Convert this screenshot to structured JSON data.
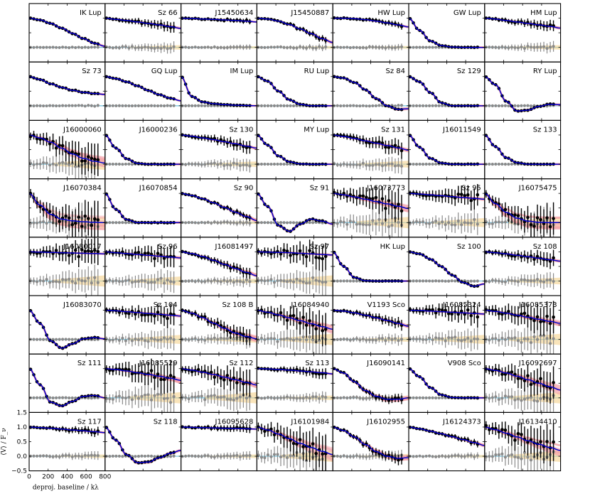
{
  "chart_data": {
    "type": "line",
    "xlabel": "deproj. baseline / kλ",
    "ylabel": "⟨V⟩ / F_ν",
    "xlim": [
      0,
      800
    ],
    "ylim": [
      -0.5,
      1.5
    ],
    "xticks": [
      "0",
      "200",
      "400",
      "600",
      "800"
    ],
    "yticks": [
      "1.5",
      "1.0",
      "0.5",
      "0.0",
      "−0.5"
    ],
    "colors": {
      "model": "#0000cc",
      "posterior": "#f4a0a8",
      "real_points": "#000000",
      "imag_points": "#8a8a8a",
      "imag_band": "#f5d28c",
      "zero_line": "#6fc3e0"
    },
    "panels": [
      {
        "name": "IK Lup",
        "values": [
          1.0,
          0.94,
          0.82,
          0.66,
          0.48,
          0.3,
          0.14,
          0.04
        ],
        "noise": 0.03
      },
      {
        "name": "Sz 66",
        "values": [
          1.0,
          0.96,
          0.92,
          0.87,
          0.82,
          0.77,
          0.71,
          0.65
        ],
        "noise": 0.1
      },
      {
        "name": "J15450634",
        "values": [
          1.0,
          0.99,
          0.97,
          0.96,
          0.94,
          0.92,
          0.9,
          0.87
        ],
        "noise": 0.05
      },
      {
        "name": "J15450887",
        "values": [
          1.0,
          0.97,
          0.9,
          0.78,
          0.63,
          0.47,
          0.3,
          0.17
        ],
        "noise": 0.06
      },
      {
        "name": "HW Lup",
        "values": [
          1.0,
          1.0,
          0.98,
          0.95,
          0.9,
          0.84,
          0.77,
          0.7
        ],
        "noise": 0.06
      },
      {
        "name": "GW Lup",
        "values": [
          1.0,
          0.58,
          0.22,
          0.06,
          0.01,
          0.0,
          0.0,
          0.0
        ],
        "noise": 0.01
      },
      {
        "name": "HM Lup",
        "values": [
          1.0,
          0.97,
          0.92,
          0.87,
          0.82,
          0.77,
          0.72,
          0.66
        ],
        "noise": 0.1
      },
      {
        "name": "Sz 73",
        "values": [
          1.0,
          0.9,
          0.75,
          0.63,
          0.53,
          0.46,
          0.42,
          0.39
        ],
        "noise": 0.03
      },
      {
        "name": "GQ Lup",
        "values": [
          1.0,
          0.93,
          0.82,
          0.68,
          0.52,
          0.38,
          0.26,
          0.17
        ],
        "noise": 0.01
      },
      {
        "name": "IM Lup",
        "values": [
          1.0,
          0.32,
          0.13,
          0.07,
          0.04,
          0.02,
          0.01,
          0.0
        ],
        "noise": 0.01
      },
      {
        "name": "RU Lup",
        "values": [
          1.0,
          0.84,
          0.5,
          0.2,
          0.05,
          0.0,
          0.0,
          0.0
        ],
        "noise": 0.01
      },
      {
        "name": "Sz 84",
        "values": [
          1.0,
          0.95,
          0.8,
          0.55,
          0.25,
          0.0,
          -0.12,
          -0.1
        ],
        "noise": 0.03
      },
      {
        "name": "Sz 129",
        "values": [
          1.0,
          0.82,
          0.45,
          0.1,
          0.0,
          0.0,
          0.0,
          0.0
        ],
        "noise": 0.01
      },
      {
        "name": "RY Lup",
        "values": [
          1.0,
          0.72,
          0.15,
          -0.18,
          -0.15,
          -0.02,
          0.05,
          0.04
        ],
        "noise": 0.02
      },
      {
        "name": "J16000060",
        "values": [
          1.0,
          0.9,
          0.75,
          0.55,
          0.35,
          0.2,
          0.1,
          0.04
        ],
        "noise": 0.3
      },
      {
        "name": "J16000236",
        "values": [
          1.0,
          0.55,
          0.18,
          0.03,
          0.0,
          0.0,
          0.0,
          0.0
        ],
        "noise": 0.02
      },
      {
        "name": "Sz 130",
        "values": [
          1.0,
          0.96,
          0.9,
          0.84,
          0.77,
          0.7,
          0.62,
          0.55
        ],
        "noise": 0.12
      },
      {
        "name": "MY Lup",
        "values": [
          1.0,
          0.65,
          0.28,
          0.08,
          0.01,
          0.0,
          0.0,
          0.0
        ],
        "noise": 0.01
      },
      {
        "name": "Sz 131",
        "values": [
          1.0,
          0.95,
          0.88,
          0.8,
          0.72,
          0.64,
          0.56,
          0.48
        ],
        "noise": 0.15
      },
      {
        "name": "J16011549",
        "values": [
          1.0,
          0.58,
          0.2,
          0.04,
          0.0,
          0.0,
          0.0,
          0.0
        ],
        "noise": 0.01
      },
      {
        "name": "Sz 133",
        "values": [
          1.0,
          0.6,
          0.22,
          0.05,
          0.0,
          0.0,
          0.0,
          0.0
        ],
        "noise": 0.01
      },
      {
        "name": "J16070384",
        "values": [
          1.0,
          0.6,
          0.28,
          0.12,
          0.06,
          0.03,
          0.01,
          0.0
        ],
        "noise": 0.35
      },
      {
        "name": "J16070854",
        "values": [
          1.0,
          0.45,
          0.1,
          0.0,
          0.0,
          0.0,
          0.0,
          0.0
        ],
        "noise": 0.02
      },
      {
        "name": "Sz 90",
        "values": [
          1.0,
          0.93,
          0.82,
          0.68,
          0.52,
          0.36,
          0.21,
          0.07
        ],
        "noise": 0.06
      },
      {
        "name": "Sz 91",
        "values": [
          1.0,
          0.55,
          -0.1,
          -0.3,
          -0.05,
          0.12,
          0.05,
          -0.05
        ],
        "noise": 0.02
      },
      {
        "name": "J16073773",
        "values": [
          1.0,
          0.95,
          0.88,
          0.8,
          0.72,
          0.64,
          0.56,
          0.48
        ],
        "noise": 0.3
      },
      {
        "name": "Sz 95",
        "values": [
          1.0,
          0.98,
          0.95,
          0.92,
          0.89,
          0.86,
          0.83,
          0.8
        ],
        "noise": 0.2
      },
      {
        "name": "J16075475",
        "values": [
          1.0,
          0.65,
          0.35,
          0.15,
          0.05,
          0.01,
          0.0,
          0.0
        ],
        "noise": 0.3
      },
      {
        "name": "J16080017",
        "values": [
          1.0,
          0.99,
          0.98,
          0.97,
          0.96,
          0.95,
          0.94,
          0.93
        ],
        "noise": 0.25
      },
      {
        "name": "Sz 96",
        "values": [
          1.0,
          0.97,
          0.94,
          0.91,
          0.88,
          0.85,
          0.82,
          0.79
        ],
        "noise": 0.2
      },
      {
        "name": "J16081497",
        "values": [
          1.0,
          0.94,
          0.84,
          0.71,
          0.57,
          0.43,
          0.3,
          0.18
        ],
        "noise": 0.1
      },
      {
        "name": "Sz 97",
        "values": [
          1.0,
          0.99,
          0.98,
          0.97,
          0.95,
          0.93,
          0.91,
          0.89
        ],
        "noise": 0.25
      },
      {
        "name": "HK Lup",
        "values": [
          1.0,
          0.5,
          0.12,
          0.01,
          0.0,
          0.0,
          0.0,
          0.0
        ],
        "noise": 0.01
      },
      {
        "name": "Sz 100",
        "values": [
          1.0,
          0.93,
          0.75,
          0.5,
          0.2,
          -0.05,
          -0.18,
          -0.1
        ],
        "noise": 0.02
      },
      {
        "name": "Sz 108",
        "values": [
          1.0,
          0.97,
          0.93,
          0.88,
          0.83,
          0.78,
          0.73,
          0.68
        ],
        "noise": 0.15
      },
      {
        "name": "J16083070",
        "values": [
          1.0,
          0.55,
          -0.05,
          -0.3,
          -0.15,
          0.02,
          0.06,
          0.02
        ],
        "noise": 0.02
      },
      {
        "name": "Sz 104",
        "values": [
          1.0,
          0.98,
          0.95,
          0.92,
          0.89,
          0.86,
          0.83,
          0.8
        ],
        "noise": 0.2
      },
      {
        "name": "Sz 108 B",
        "values": [
          1.0,
          0.9,
          0.75,
          0.56,
          0.38,
          0.22,
          0.1,
          0.02
        ],
        "noise": 0.15
      },
      {
        "name": "J16084940",
        "values": [
          1.0,
          0.93,
          0.84,
          0.74,
          0.64,
          0.54,
          0.44,
          0.35
        ],
        "noise": 0.3
      },
      {
        "name": "V1193 Sco",
        "values": [
          1.0,
          0.97,
          0.91,
          0.83,
          0.74,
          0.65,
          0.55,
          0.45
        ],
        "noise": 0.1
      },
      {
        "name": "J16085324",
        "values": [
          1.0,
          0.99,
          0.97,
          0.95,
          0.93,
          0.91,
          0.89,
          0.87
        ],
        "noise": 0.2
      },
      {
        "name": "J16085373",
        "values": [
          1.0,
          0.96,
          0.9,
          0.83,
          0.76,
          0.69,
          0.62,
          0.55
        ],
        "noise": 0.3
      },
      {
        "name": "Sz 111",
        "values": [
          1.0,
          0.45,
          -0.15,
          -0.28,
          -0.12,
          0.05,
          0.08,
          0.0
        ],
        "noise": 0.02
      },
      {
        "name": "J16085529",
        "values": [
          1.0,
          0.97,
          0.92,
          0.86,
          0.8,
          0.74,
          0.67,
          0.6
        ],
        "noise": 0.3
      },
      {
        "name": "Sz 112",
        "values": [
          1.0,
          0.95,
          0.88,
          0.8,
          0.71,
          0.62,
          0.53,
          0.44
        ],
        "noise": 0.25
      },
      {
        "name": "Sz 113",
        "values": [
          1.0,
          0.99,
          0.97,
          0.95,
          0.92,
          0.89,
          0.86,
          0.82
        ],
        "noise": 0.1
      },
      {
        "name": "J16090141",
        "values": [
          1.0,
          0.85,
          0.55,
          0.25,
          0.05,
          -0.05,
          -0.05,
          0.0
        ],
        "noise": 0.08
      },
      {
        "name": "V908 Sco",
        "values": [
          1.0,
          0.72,
          0.35,
          0.1,
          0.01,
          0.0,
          0.0,
          0.0
        ],
        "noise": 0.01
      },
      {
        "name": "J16092697",
        "values": [
          1.0,
          0.94,
          0.85,
          0.74,
          0.62,
          0.5,
          0.38,
          0.27
        ],
        "noise": 0.3
      },
      {
        "name": "Sz 117",
        "values": [
          1.0,
          0.98,
          0.96,
          0.93,
          0.9,
          0.87,
          0.84,
          0.81
        ],
        "noise": 0.08
      },
      {
        "name": "Sz 118",
        "values": [
          1.0,
          0.55,
          0.05,
          -0.22,
          -0.2,
          -0.05,
          0.1,
          0.2
        ],
        "noise": 0.03
      },
      {
        "name": "J16095628",
        "values": [
          1.0,
          0.99,
          0.98,
          0.97,
          0.96,
          0.95,
          0.94,
          0.93
        ],
        "noise": 0.08
      },
      {
        "name": "J16101984",
        "values": [
          1.0,
          0.9,
          0.76,
          0.6,
          0.44,
          0.3,
          0.17,
          0.06
        ],
        "noise": 0.35
      },
      {
        "name": "J16102955",
        "values": [
          1.0,
          0.88,
          0.66,
          0.4,
          0.16,
          0.0,
          -0.07,
          -0.05
        ],
        "noise": 0.1
      },
      {
        "name": "J16124373",
        "values": [
          1.0,
          0.94,
          0.86,
          0.77,
          0.67,
          0.57,
          0.47,
          0.37
        ],
        "noise": 0.06
      },
      {
        "name": "J16134410",
        "values": [
          1.0,
          0.91,
          0.79,
          0.66,
          0.53,
          0.41,
          0.3,
          0.2
        ],
        "noise": 0.35
      }
    ]
  }
}
